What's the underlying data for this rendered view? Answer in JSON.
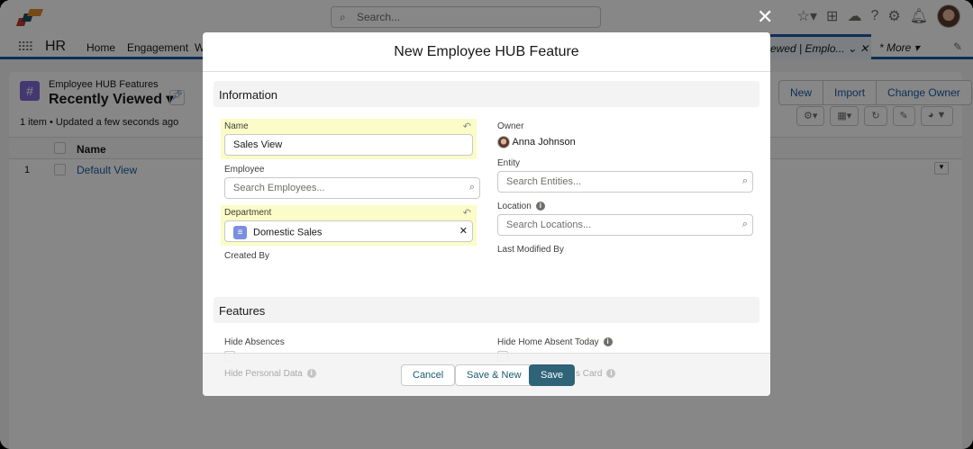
{
  "app": {
    "search_placeholder": "Search...",
    "app_name": "HR",
    "nav": [
      "Home",
      "Engagement",
      "W"
    ],
    "nav_tab": "...ewed | Emplo...",
    "more": "* More"
  },
  "list": {
    "object": "Employee HUB Features",
    "view": "Recently Viewed",
    "meta": "1 item • Updated a few seconds ago",
    "col_name": "Name",
    "rows": [
      {
        "num": "1",
        "name": "Default View"
      }
    ],
    "buttons": [
      "New",
      "Import",
      "Change Owner"
    ]
  },
  "modal": {
    "title": "New Employee HUB Feature",
    "information": {
      "heading": "Information",
      "name_label": "Name",
      "name_value": "Sales View",
      "employee_label": "Employee",
      "employee_placeholder": "Search Employees...",
      "department_label": "Department",
      "department_value": "Domestic Sales",
      "created_by_label": "Created By",
      "owner_label": "Owner",
      "owner_value": "Anna Johnson",
      "entity_label": "Entity",
      "entity_placeholder": "Search Entities...",
      "location_label": "Location",
      "location_placeholder": "Search Locations...",
      "last_modified_label": "Last Modified By"
    },
    "features": {
      "heading": "Features",
      "items": [
        {
          "label": "Hide Absences",
          "checked": false
        },
        {
          "label": "Hide Home Absent Today",
          "checked": false
        },
        {
          "label": "Hide Personal Data",
          "checked": false
        },
        {
          "label": "s Card",
          "checked": false
        }
      ]
    },
    "footer": {
      "cancel": "Cancel",
      "save_new": "Save & New",
      "save": "Save"
    }
  },
  "colors": {
    "primary": "#2e6378",
    "brand": "#1b5aa6",
    "highlight": "#fbfcc7"
  }
}
